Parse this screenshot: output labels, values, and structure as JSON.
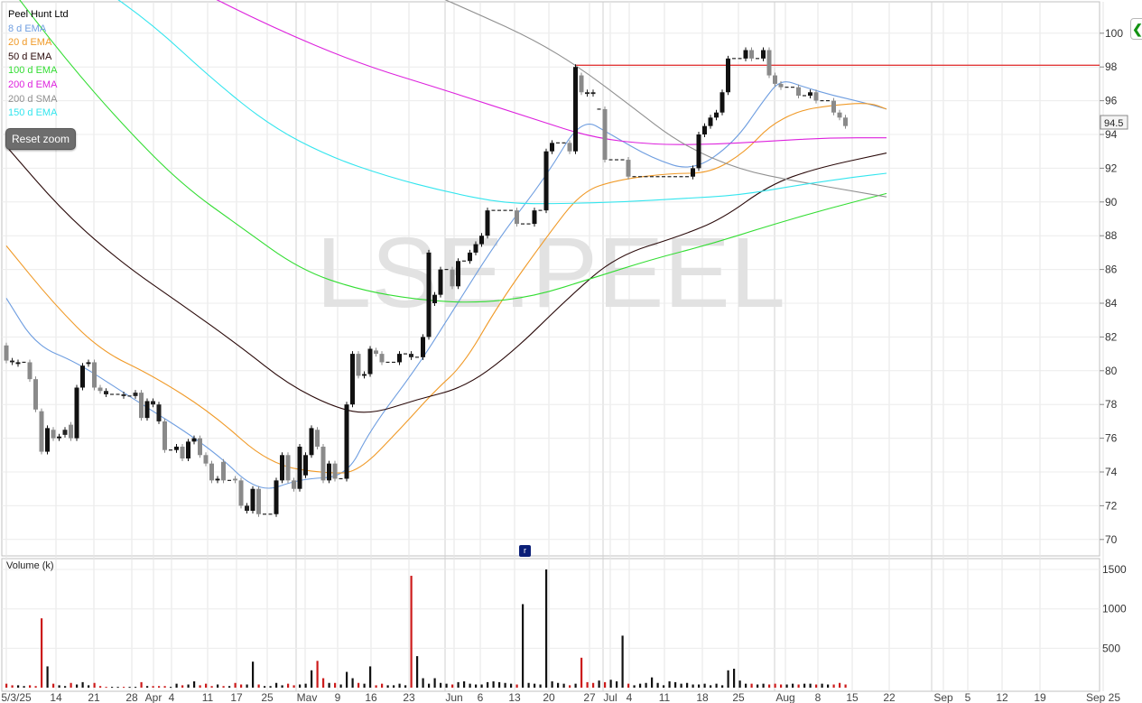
{
  "legend": {
    "items": [
      {
        "label": "Peel Hunt Ltd",
        "color": "#000000"
      },
      {
        "label": "8 d EMA",
        "color": "#6f9ee0"
      },
      {
        "label": "20 d EMA",
        "color": "#f09a28"
      },
      {
        "label": "50 d EMA",
        "color": "#2a0a0a"
      },
      {
        "label": "100 d EMA",
        "color": "#33dd33"
      },
      {
        "label": "200 d EMA",
        "color": "#dd22dd"
      },
      {
        "label": "200 d SMA",
        "color": "#909090"
      },
      {
        "label": "150 d EMA",
        "color": "#33e5ee"
      }
    ]
  },
  "controls": {
    "reset_zoom": "Reset zoom",
    "marker": "r"
  },
  "watermark": "LSE.PEEL",
  "chart_data": {
    "type": "ohlc",
    "price_axis": {
      "ticks": [
        70,
        72,
        74,
        76,
        78,
        80,
        82,
        84,
        86,
        88,
        90,
        92,
        94,
        96,
        98,
        100
      ],
      "range": [
        69,
        101.5
      ]
    },
    "volume_axis": {
      "label": "Volume (k)",
      "ticks": [
        500,
        1000,
        1500
      ],
      "range": [
        0,
        1650
      ]
    },
    "x_labels": [
      "5/3/25",
      "14",
      "21",
      "28",
      "Apr",
      "4",
      "11",
      "17",
      "25",
      "Mav",
      "9",
      "16",
      "23",
      "Jun",
      "6",
      "13",
      "20",
      "27",
      "Jul",
      "4",
      "11",
      "18",
      "25",
      "Aug",
      "8",
      "15",
      "22",
      "Sep",
      "5",
      "12",
      "19",
      "Sep 25"
    ],
    "last_price_label": "94.5",
    "resistance_level": 98.1,
    "candles": [
      [
        81.5,
        80.6,
        1,
        0.05
      ],
      [
        80.6,
        80.5,
        0.8,
        0.03
      ],
      [
        80.4,
        80.5,
        1,
        0.03
      ],
      [
        80.5,
        80.5,
        0.7,
        0.02
      ],
      [
        80.5,
        79.5,
        1,
        0.03
      ],
      [
        79.5,
        77.7,
        1,
        0.02
      ],
      [
        77.6,
        75.2,
        1,
        0.88
      ],
      [
        75.2,
        76.6,
        1,
        0.27
      ],
      [
        76.5,
        76.0,
        1,
        0.05
      ],
      [
        76.0,
        76.1,
        1,
        0.03
      ],
      [
        76.2,
        76.5,
        0.5,
        0.02
      ],
      [
        76.8,
        76.0,
        1,
        0.06
      ],
      [
        76.0,
        79.0,
        1,
        0.04
      ],
      [
        79.0,
        80.3,
        1,
        0.07
      ],
      [
        80.4,
        80.5,
        1,
        0.03
      ],
      [
        80.5,
        79.0,
        1,
        0.06
      ],
      [
        79.0,
        78.8,
        1,
        0.02
      ],
      [
        78.8,
        78.6,
        0.3,
        0.01
      ],
      [
        78.6,
        78.6,
        0.3,
        0.01
      ],
      [
        78.6,
        78.6,
        0.3,
        0.01
      ],
      [
        78.6,
        78.5,
        0.3,
        0.01
      ],
      [
        78.5,
        78.5,
        0.3,
        0.01
      ],
      [
        78.5,
        78.7,
        0.3,
        0.01
      ],
      [
        78.7,
        77.2,
        1,
        0.07
      ],
      [
        77.2,
        78.2,
        1,
        0.02
      ],
      [
        78.2,
        78.0,
        0.5,
        0.02
      ],
      [
        78.0,
        77.0,
        0.5,
        0.02
      ],
      [
        77.0,
        75.3,
        1,
        0.02
      ],
      [
        75.3,
        75.3,
        0.4,
        0.01
      ],
      [
        75.3,
        75.5,
        1,
        0.05
      ],
      [
        75.5,
        74.8,
        1,
        0.03
      ],
      [
        74.8,
        75.8,
        1,
        0.04
      ],
      [
        75.8,
        76.0,
        1,
        0.08
      ],
      [
        76.0,
        75.0,
        1,
        0.03
      ],
      [
        75.0,
        74.5,
        1,
        0.05
      ],
      [
        74.5,
        73.5,
        1,
        0.02
      ],
      [
        73.5,
        73.6,
        1,
        0.04
      ],
      [
        74.6,
        73.5,
        1,
        0.02
      ],
      [
        73.5,
        73.5,
        1,
        0.02
      ],
      [
        73.6,
        73.5,
        1,
        0.06
      ],
      [
        73.5,
        72.0,
        1,
        0.04
      ],
      [
        71.7,
        72.0,
        0.3,
        0.04
      ],
      [
        71.7,
        73.0,
        1,
        0.33
      ],
      [
        73.0,
        71.5,
        1,
        0.04
      ],
      [
        71.5,
        71.5,
        0.5,
        0.02
      ],
      [
        71.5,
        71.5,
        0.5,
        0.02
      ],
      [
        71.5,
        73.5,
        1,
        0.06
      ],
      [
        73.5,
        75.0,
        1,
        0.03
      ],
      [
        75.0,
        73.5,
        1,
        0.05
      ],
      [
        73.5,
        73.0,
        1,
        0.03
      ],
      [
        73.0,
        75.5,
        1,
        0.04
      ],
      [
        73.8,
        75.0,
        1,
        0.05
      ],
      [
        75.0,
        76.6,
        1,
        0.22
      ],
      [
        76.5,
        75.5,
        1,
        0.34
      ],
      [
        75.5,
        73.5,
        1,
        0.12
      ],
      [
        73.5,
        74.5,
        1,
        0.06
      ],
      [
        74.5,
        73.6,
        1,
        0.06
      ],
      [
        73.6,
        73.6,
        0.5,
        0.04
      ],
      [
        73.6,
        78.0,
        1,
        0.2
      ],
      [
        78.0,
        81.0,
        1,
        0.12
      ],
      [
        81.0,
        79.7,
        1,
        0.06
      ],
      [
        79.7,
        79.8,
        1,
        0.05
      ],
      [
        79.8,
        81.3,
        1,
        0.27
      ],
      [
        81.2,
        81.0,
        1,
        0.03
      ],
      [
        81.0,
        80.5,
        1,
        0.05
      ],
      [
        80.5,
        80.5,
        1,
        0.03
      ],
      [
        80.5,
        80.5,
        1,
        0.03
      ],
      [
        80.5,
        81.0,
        1,
        0.05
      ],
      [
        81.0,
        81.0,
        1,
        0.03
      ],
      [
        81.0,
        80.8,
        0.5,
        1.42
      ],
      [
        80.8,
        80.8,
        0.5,
        0.4
      ],
      [
        80.8,
        82.0,
        1,
        0.12
      ],
      [
        82.0,
        87.0,
        1,
        0.05
      ],
      [
        84.0,
        84.5,
        1,
        0.12
      ],
      [
        84.5,
        86.0,
        1,
        0.06
      ],
      [
        86.0,
        86.0,
        1,
        0.05
      ],
      [
        86.0,
        85.0,
        1,
        0.04
      ],
      [
        85.0,
        86.5,
        1,
        0.07
      ],
      [
        86.5,
        86.5,
        1,
        0.08
      ],
      [
        86.5,
        87.0,
        1,
        0.05
      ],
      [
        87.0,
        87.5,
        1,
        0.04
      ],
      [
        87.5,
        88.0,
        1,
        0.04
      ],
      [
        88.0,
        89.5,
        1,
        0.07
      ],
      [
        89.5,
        89.5,
        1,
        0.08
      ],
      [
        89.5,
        89.5,
        1,
        0.07
      ],
      [
        89.5,
        89.5,
        1,
        0.06
      ],
      [
        89.5,
        89.5,
        1,
        0.05
      ],
      [
        89.5,
        88.7,
        1,
        0.04
      ],
      [
        88.7,
        88.7,
        1,
        1.06
      ],
      [
        88.7,
        88.7,
        1,
        0.06
      ],
      [
        88.7,
        89.5,
        1,
        0.05
      ],
      [
        89.5,
        89.5,
        1,
        0.04
      ],
      [
        89.5,
        93.0,
        1,
        1.5
      ],
      [
        93.0,
        93.5,
        1,
        0.08
      ],
      [
        93.5,
        93.5,
        1,
        0.06
      ],
      [
        93.5,
        93.5,
        1,
        0.05
      ],
      [
        93.5,
        93.0,
        1,
        0.03
      ],
      [
        93.0,
        98.0,
        1,
        0.05
      ],
      [
        97.5,
        96.5,
        1,
        0.38
      ],
      [
        96.5,
        96.4,
        0.5,
        0.07
      ],
      [
        96.5,
        96.4,
        0.5,
        0.06
      ],
      [
        95.5,
        95.5,
        1,
        0.09
      ],
      [
        95.5,
        92.5,
        1,
        0.07
      ],
      [
        92.5,
        92.5,
        0.5,
        0.1
      ],
      [
        92.5,
        92.5,
        0.5,
        0.08
      ],
      [
        92.5,
        92.5,
        0.5,
        0.66
      ],
      [
        92.5,
        91.5,
        1,
        0.05
      ],
      [
        91.5,
        91.5,
        1,
        0.03
      ],
      [
        91.5,
        91.5,
        1,
        0.05
      ],
      [
        91.5,
        91.5,
        1,
        0.06
      ],
      [
        91.5,
        91.5,
        1,
        0.13
      ],
      [
        91.5,
        91.5,
        1,
        0.06
      ],
      [
        91.5,
        91.5,
        1,
        0.03
      ],
      [
        91.5,
        91.5,
        1,
        0.08
      ],
      [
        91.5,
        91.5,
        1,
        0.07
      ],
      [
        91.5,
        91.5,
        1,
        0.05
      ],
      [
        91.5,
        91.5,
        1,
        0.06
      ],
      [
        91.5,
        92.0,
        1,
        0.04
      ],
      [
        92.0,
        94.0,
        1,
        0.04
      ],
      [
        94.0,
        94.5,
        1,
        0.05
      ],
      [
        94.5,
        95.0,
        1,
        0.03
      ],
      [
        95.0,
        95.3,
        1,
        0.05
      ],
      [
        95.3,
        96.5,
        1,
        0.03
      ],
      [
        96.5,
        98.5,
        1,
        0.22
      ],
      [
        98.5,
        98.5,
        0.3,
        0.24
      ],
      [
        98.5,
        98.5,
        0.3,
        0.09
      ],
      [
        98.5,
        99.0,
        1,
        0.05
      ],
      [
        99.0,
        98.5,
        1,
        0.05
      ],
      [
        98.5,
        98.5,
        1,
        0.04
      ],
      [
        98.5,
        99.0,
        1,
        0.05
      ],
      [
        99.0,
        97.5,
        1,
        0.04
      ],
      [
        97.5,
        97.0,
        1,
        0.05
      ],
      [
        97.0,
        96.8,
        1,
        0.04
      ],
      [
        96.8,
        96.8,
        1,
        0.04
      ],
      [
        96.8,
        96.8,
        1,
        0.05
      ],
      [
        96.8,
        96.3,
        1,
        0.04
      ],
      [
        96.3,
        96.3,
        1,
        0.05
      ],
      [
        96.3,
        96.5,
        1,
        0.05
      ],
      [
        96.5,
        96.0,
        1,
        0.04
      ],
      [
        96.0,
        96.0,
        0.5,
        0.05
      ],
      [
        96.0,
        96.0,
        0.5,
        0.04
      ],
      [
        96.0,
        95.3,
        1,
        0.04
      ],
      [
        95.3,
        95.0,
        1,
        0.06
      ],
      [
        95.0,
        94.5,
        1,
        0.04
      ]
    ],
    "series": [
      {
        "name": "8 d EMA",
        "values": [
          [
            0,
            84.3
          ],
          [
            5,
            81.5
          ],
          [
            12,
            80.5
          ],
          [
            20,
            78.7
          ],
          [
            35,
            75.4
          ],
          [
            43,
            72.7
          ],
          [
            50,
            73.6
          ],
          [
            58,
            73.7
          ],
          [
            62,
            76.5
          ],
          [
            70,
            80.2
          ],
          [
            76,
            83.5
          ],
          [
            84,
            87.9
          ],
          [
            92,
            91.5
          ],
          [
            98,
            95.0
          ],
          [
            103,
            94.0
          ],
          [
            110,
            92.6
          ],
          [
            117,
            91.8
          ],
          [
            124,
            93.5
          ],
          [
            129,
            96.0
          ],
          [
            132,
            97.3
          ],
          [
            136,
            96.8
          ],
          [
            141,
            96.3
          ],
          [
            146,
            95.9
          ],
          [
            150,
            95.5
          ]
        ]
      },
      {
        "name": "20 d EMA",
        "values": [
          [
            0,
            87.4
          ],
          [
            8,
            84.0
          ],
          [
            16,
            81.2
          ],
          [
            25,
            79.7
          ],
          [
            35,
            77.5
          ],
          [
            45,
            74.4
          ],
          [
            55,
            73.9
          ],
          [
            60,
            74.0
          ],
          [
            67,
            76.5
          ],
          [
            73,
            78.8
          ],
          [
            78,
            80.4
          ],
          [
            84,
            84.0
          ],
          [
            92,
            87.9
          ],
          [
            98,
            90.6
          ],
          [
            104,
            91.3
          ],
          [
            113,
            91.7
          ],
          [
            120,
            91.7
          ],
          [
            126,
            93.0
          ],
          [
            130,
            94.5
          ],
          [
            135,
            95.4
          ],
          [
            140,
            95.7
          ],
          [
            147,
            95.9
          ],
          [
            150,
            95.5
          ]
        ]
      },
      {
        "name": "50 d EMA",
        "values": [
          [
            0,
            93.3
          ],
          [
            10,
            89.3
          ],
          [
            20,
            86.3
          ],
          [
            30,
            83.9
          ],
          [
            40,
            81.4
          ],
          [
            48,
            79.2
          ],
          [
            56,
            77.8
          ],
          [
            62,
            77.4
          ],
          [
            70,
            78.3
          ],
          [
            78,
            79.0
          ],
          [
            86,
            81.0
          ],
          [
            96,
            84.4
          ],
          [
            104,
            86.8
          ],
          [
            115,
            88.0
          ],
          [
            122,
            89.0
          ],
          [
            130,
            91.0
          ],
          [
            138,
            92.0
          ],
          [
            150,
            92.9
          ]
        ]
      },
      {
        "name": "100 d EMA",
        "values": [
          [
            0,
            103.0
          ],
          [
            10,
            98.5
          ],
          [
            20,
            94.5
          ],
          [
            30,
            91.0
          ],
          [
            40,
            88.5
          ],
          [
            50,
            86.0
          ],
          [
            60,
            84.8
          ],
          [
            70,
            84.2
          ],
          [
            80,
            84.0
          ],
          [
            90,
            84.4
          ],
          [
            100,
            85.5
          ],
          [
            110,
            86.6
          ],
          [
            120,
            87.5
          ],
          [
            130,
            88.6
          ],
          [
            140,
            89.6
          ],
          [
            150,
            90.5
          ]
        ]
      },
      {
        "name": "200 d EMA",
        "values": [
          [
            30,
            103.0
          ],
          [
            45,
            100.4
          ],
          [
            60,
            98.2
          ],
          [
            75,
            96.6
          ],
          [
            90,
            94.9
          ],
          [
            100,
            93.8
          ],
          [
            110,
            93.4
          ],
          [
            120,
            93.4
          ],
          [
            130,
            93.6
          ],
          [
            140,
            93.8
          ],
          [
            150,
            93.8
          ]
        ]
      },
      {
        "name": "200 d SMA",
        "values": [
          [
            68,
            103.0
          ],
          [
            80,
            101.2
          ],
          [
            90,
            99.6
          ],
          [
            98,
            97.9
          ],
          [
            106,
            95.8
          ],
          [
            115,
            93.4
          ],
          [
            125,
            91.9
          ],
          [
            135,
            91.2
          ],
          [
            145,
            90.6
          ],
          [
            150,
            90.3
          ]
        ]
      },
      {
        "name": "150 d EMA",
        "values": [
          [
            15,
            103.0
          ],
          [
            25,
            100.5
          ],
          [
            35,
            97.3
          ],
          [
            45,
            94.5
          ],
          [
            55,
            92.7
          ],
          [
            65,
            91.5
          ],
          [
            75,
            90.6
          ],
          [
            85,
            89.9
          ],
          [
            95,
            89.9
          ],
          [
            105,
            90.0
          ],
          [
            115,
            90.2
          ],
          [
            125,
            90.4
          ],
          [
            135,
            91.0
          ],
          [
            145,
            91.5
          ],
          [
            150,
            91.7
          ]
        ]
      }
    ]
  }
}
